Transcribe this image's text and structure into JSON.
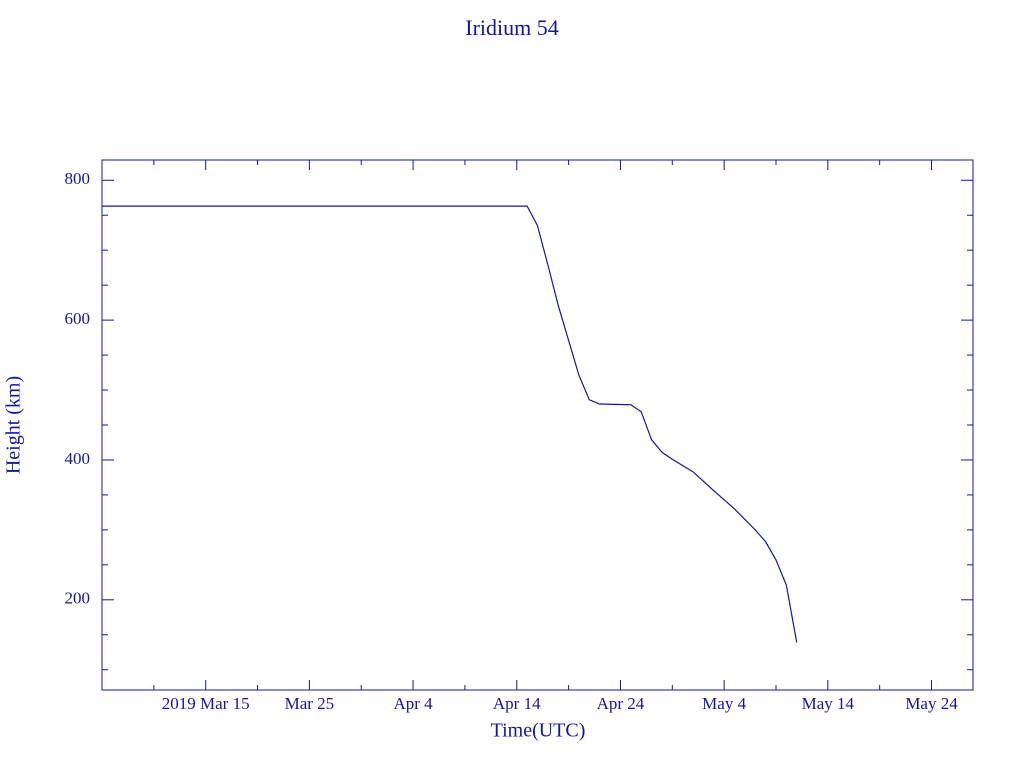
{
  "chart_data": {
    "type": "line",
    "title": "Iridium 54",
    "xlabel": "Time(UTC)",
    "ylabel": "Height (km)",
    "x": [
      "2019-03-05",
      "2019-04-15",
      "2019-04-16",
      "2019-04-17",
      "2019-04-18",
      "2019-04-19",
      "2019-04-20",
      "2019-04-21",
      "2019-04-22",
      "2019-04-25",
      "2019-04-26",
      "2019-04-27",
      "2019-04-28",
      "2019-04-29",
      "2019-05-01",
      "2019-05-03",
      "2019-05-05",
      "2019-05-07",
      "2019-05-08",
      "2019-05-09",
      "2019-05-10",
      "2019-05-11"
    ],
    "series": [
      {
        "name": "Iridium 54",
        "color": "#16169a",
        "values": [
          763,
          763,
          735,
          679,
          621,
          571,
          521,
          486,
          480,
          479,
          469,
          429,
          411,
          401,
          383,
          356,
          330,
          300,
          283,
          257,
          221,
          139
        ]
      }
    ],
    "xlim": [
      "2019-03-05",
      "2019-05-28"
    ],
    "xticks": [
      {
        "value": "2019-03-15",
        "label": "2019 Mar 15"
      },
      {
        "value": "2019-03-25",
        "label": "Mar 25"
      },
      {
        "value": "2019-04-04",
        "label": "Apr 4"
      },
      {
        "value": "2019-04-14",
        "label": "Apr 14"
      },
      {
        "value": "2019-04-24",
        "label": "Apr 24"
      },
      {
        "value": "2019-05-04",
        "label": "May 4"
      },
      {
        "value": "2019-05-14",
        "label": "May 14"
      },
      {
        "value": "2019-05-24",
        "label": "May 24"
      }
    ],
    "xminor_ticks": [
      "2019-03-10",
      "2019-03-20",
      "2019-03-30",
      "2019-04-09",
      "2019-04-19",
      "2019-04-29",
      "2019-05-09",
      "2019-05-19"
    ],
    "ylim": [
      71,
      829
    ],
    "yticks": [
      200,
      400,
      600,
      800
    ],
    "yminor_ticks": [
      100,
      150,
      250,
      300,
      350,
      450,
      500,
      550,
      650,
      700,
      750
    ]
  }
}
